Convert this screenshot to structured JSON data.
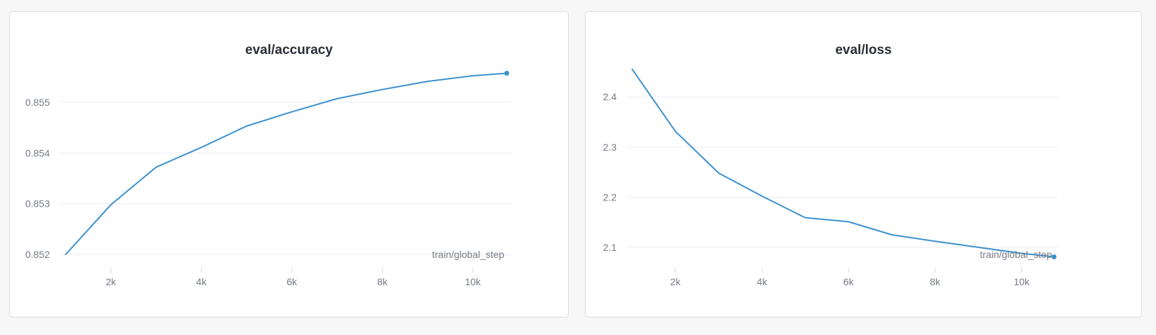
{
  "chart_data": [
    {
      "type": "line",
      "title": "eval/accuracy",
      "xlabel": "train/global_step",
      "ylabel": "",
      "xlim": [
        900,
        10850
      ],
      "ylim": [
        0.85185,
        0.85595
      ],
      "x_ticks": [
        2000,
        4000,
        6000,
        8000,
        10000
      ],
      "x_tick_labels": [
        "2k",
        "4k",
        "6k",
        "8k",
        "10k"
      ],
      "y_ticks": [
        0.852,
        0.853,
        0.854,
        0.855
      ],
      "y_tick_labels": [
        "0.852",
        "0.853",
        "0.854",
        "0.855"
      ],
      "grid": true,
      "legend": "none",
      "series": [
        {
          "color": "#3c91cf",
          "x": [
            1000,
            2000,
            3000,
            4000,
            5000,
            6000,
            7000,
            8000,
            9000,
            10000,
            10750
          ],
          "y": [
            0.852,
            0.85298,
            0.85372,
            0.85411,
            0.85453,
            0.85481,
            0.85507,
            0.85525,
            0.85541,
            0.85552,
            0.85557
          ]
        }
      ]
    },
    {
      "type": "line",
      "title": "eval/loss",
      "xlabel": "train/global_step",
      "ylabel": "",
      "xlim": [
        900,
        10850
      ],
      "ylim": [
        2.0705,
        2.4855
      ],
      "x_ticks": [
        2000,
        4000,
        6000,
        8000,
        10000
      ],
      "x_tick_labels": [
        "2k",
        "4k",
        "6k",
        "8k",
        "10k"
      ],
      "y_ticks": [
        2.1,
        2.2,
        2.3,
        2.4
      ],
      "y_tick_labels": [
        "2.1",
        "2.2",
        "2.3",
        "2.4"
      ],
      "grid": true,
      "legend": "none",
      "series": [
        {
          "color": "#3c91cf",
          "x": [
            1000,
            2000,
            3000,
            4000,
            5000,
            6000,
            7000,
            8000,
            9000,
            10000,
            10750
          ],
          "y": [
            2.455,
            2.331,
            2.248,
            2.202,
            2.159,
            2.151,
            2.125,
            2.112,
            2.1,
            2.088,
            2.081
          ]
        }
      ]
    }
  ]
}
